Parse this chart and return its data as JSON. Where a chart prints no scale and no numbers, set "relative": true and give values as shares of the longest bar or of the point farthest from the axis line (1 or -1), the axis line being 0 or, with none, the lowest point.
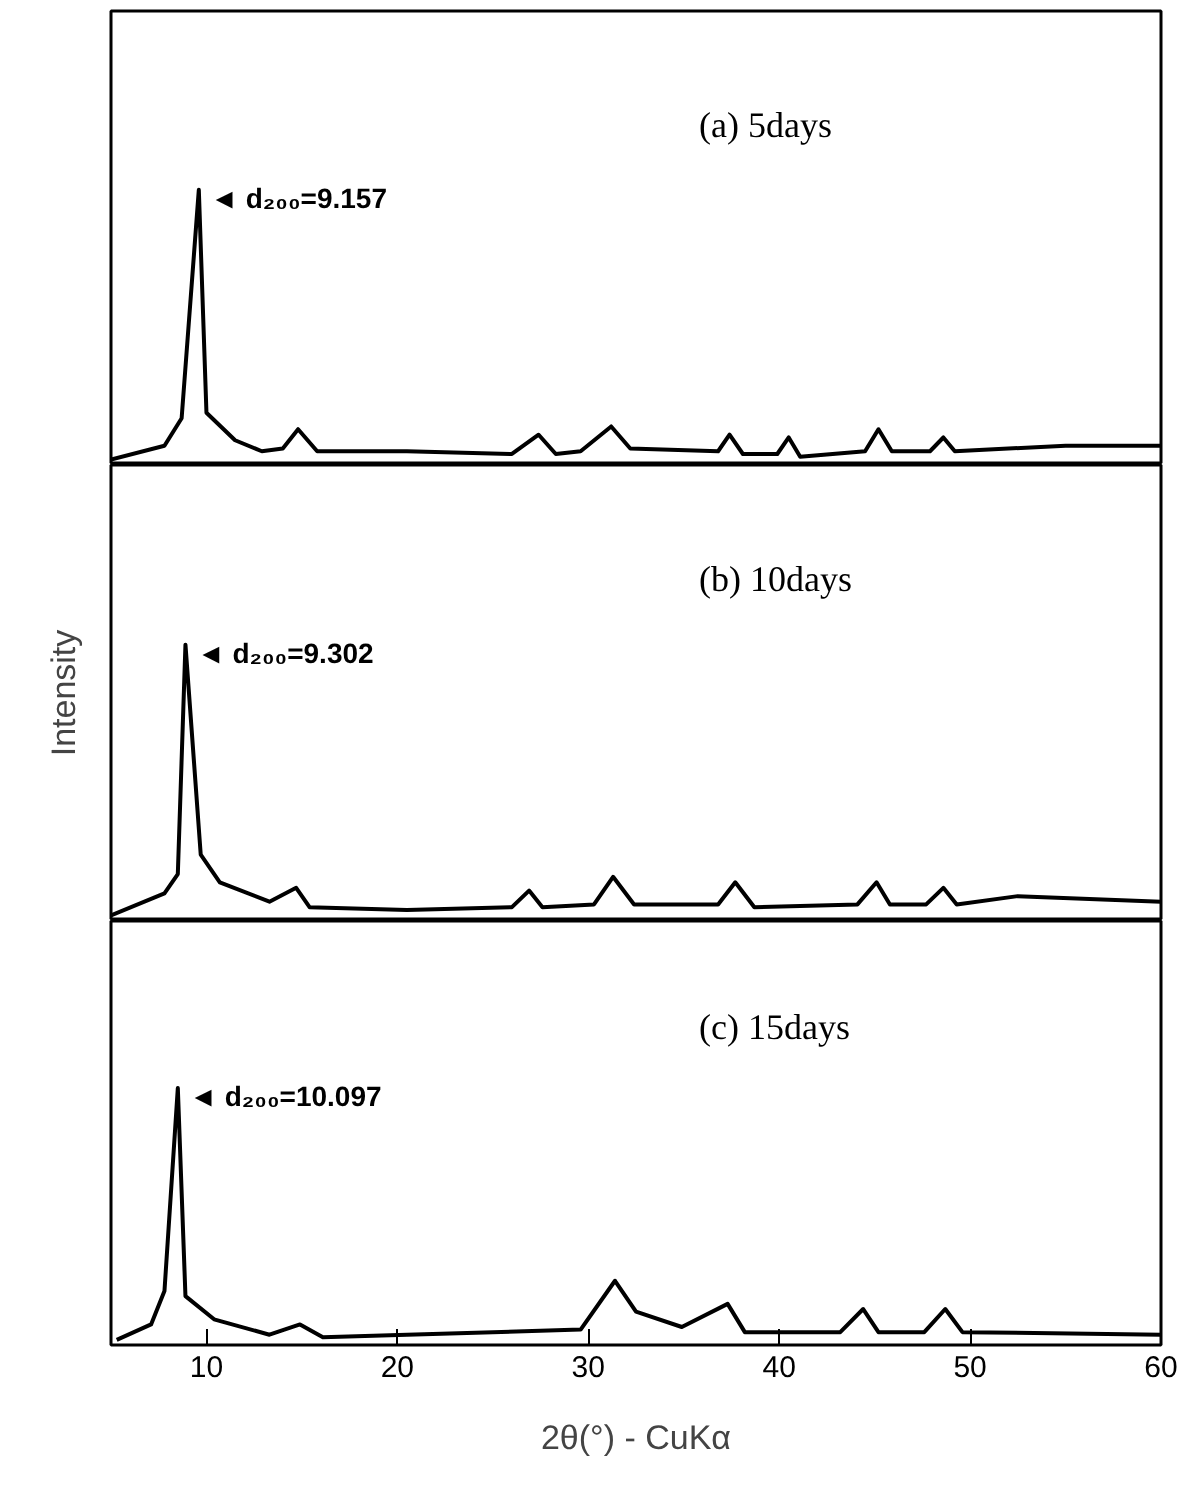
{
  "chart_data": [
    {
      "type": "line",
      "relative": true,
      "xlim": [
        5,
        60
      ],
      "tick_labels": false,
      "annotations": [
        {
          "text": "◄ d₂₀₀=9.157",
          "x": 9.6,
          "y": 1
        },
        "(a) 5days"
      ],
      "series": [
        {
          "color": "#000000",
          "x": [
            5.0,
            7.8,
            8.7,
            9.6,
            10.0,
            11.5,
            12.9,
            14.0,
            14.8,
            15.8,
            20.5,
            26.0,
            27.4,
            28.3,
            29.6,
            31.2,
            32.2,
            36.8,
            37.4,
            38.1,
            39.9,
            40.5,
            41.1,
            44.5,
            45.2,
            45.9,
            47.9,
            48.6,
            49.2,
            55.0,
            60.0
          ],
          "values": [
            0.02,
            0.07,
            0.17,
            1.0,
            0.19,
            0.09,
            0.05,
            0.06,
            0.13,
            0.05,
            0.05,
            0.04,
            0.11,
            0.04,
            0.05,
            0.14,
            0.06,
            0.05,
            0.11,
            0.04,
            0.04,
            0.1,
            0.03,
            0.05,
            0.13,
            0.05,
            0.05,
            0.1,
            0.05,
            0.07,
            0.07
          ]
        }
      ]
    },
    {
      "type": "line",
      "relative": true,
      "xlim": [
        5,
        60
      ],
      "tick_labels": false,
      "ylabel": "Intensity",
      "annotations": [
        {
          "text": "◄ d₂₀₀=9.302",
          "x": 8.9,
          "y": 1
        },
        "(b) 10days"
      ],
      "series": [
        {
          "color": "#000000",
          "x": [
            5.0,
            7.8,
            8.5,
            8.9,
            9.7,
            10.7,
            13.3,
            14.7,
            15.4,
            20.5,
            26.0,
            26.9,
            27.6,
            30.3,
            31.3,
            32.4,
            36.8,
            37.7,
            38.7,
            44.1,
            45.1,
            45.8,
            47.7,
            48.6,
            49.3,
            52.5,
            60.0
          ],
          "values": [
            0.02,
            0.1,
            0.17,
            1.0,
            0.24,
            0.14,
            0.07,
            0.12,
            0.05,
            0.04,
            0.05,
            0.11,
            0.05,
            0.06,
            0.16,
            0.06,
            0.06,
            0.14,
            0.05,
            0.06,
            0.14,
            0.06,
            0.06,
            0.12,
            0.06,
            0.09,
            0.07
          ]
        }
      ]
    },
    {
      "type": "line",
      "relative": true,
      "xlim": [
        5,
        60
      ],
      "tick_labels": "x",
      "xticks": [
        10,
        20,
        30,
        40,
        50,
        60
      ],
      "xlabel": "2θ(°) - CuKα",
      "annotations": [
        {
          "text": "◄ d₂₀₀=10.097",
          "x": 8.5,
          "y": 1
        },
        "(c) 15days"
      ],
      "series": [
        {
          "color": "#000000",
          "x": [
            5.3,
            7.1,
            7.8,
            8.5,
            8.9,
            10.4,
            13.3,
            14.9,
            16.1,
            20.5,
            29.6,
            31.4,
            32.5,
            34.9,
            37.3,
            38.2,
            43.2,
            44.4,
            45.2,
            47.6,
            48.7,
            49.6,
            60.0
          ],
          "values": [
            0.02,
            0.08,
            0.21,
            1.0,
            0.19,
            0.1,
            0.04,
            0.08,
            0.03,
            0.04,
            0.06,
            0.25,
            0.13,
            0.07,
            0.16,
            0.05,
            0.05,
            0.14,
            0.05,
            0.05,
            0.14,
            0.05,
            0.04
          ]
        }
      ]
    }
  ]
}
